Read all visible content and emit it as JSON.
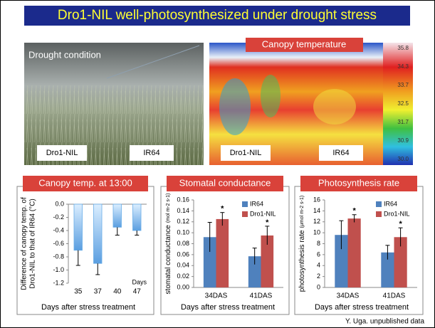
{
  "title": "Dro1-NIL well-photosynthesized under drought stress",
  "photos": [
    {
      "caption": "Drought condition",
      "labels": [
        "Dro1-NIL",
        "IR64"
      ]
    },
    {
      "caption": "Canopy temperature",
      "labels": [
        "Dro1-NIL",
        "IR64"
      ],
      "scale": [
        "35.8",
        "34.3",
        "33.7",
        "32.5",
        "31.7",
        "30.9",
        "30.0"
      ]
    }
  ],
  "chart_data": [
    {
      "type": "bar",
      "title": "Canopy temp. at 13:00",
      "ylabel": [
        "Difference of canopy temp. of",
        "Dro1-NIL to that of IR64 (°C)"
      ],
      "xlabel": "Days after stress treatment",
      "annotation": "Days",
      "categories": [
        "35",
        "37",
        "40",
        "47"
      ],
      "values": [
        -0.7,
        -0.9,
        -0.35,
        -0.4
      ],
      "errors": [
        0.23,
        0.17,
        0.12,
        0.07
      ],
      "color": "#6aaee8",
      "ylim": [
        -1.2,
        0
      ],
      "yticks": [
        {
          "value": 0,
          "label": "0.0"
        },
        -0.2,
        -0.4,
        -0.6,
        -0.8,
        {
          "value": -1,
          "label": "-1.0"
        },
        -1.2
      ]
    },
    {
      "type": "bar",
      "title": "Stomatal conductance",
      "ylabel": "stomatal conductance",
      "yunit": "(mol m-2 s-1)",
      "xlabel": "Days after stress treatment",
      "categories": [
        "34DAS",
        "41DAS"
      ],
      "series": [
        {
          "name": "IR64",
          "color": "#4f81bd",
          "values": [
            0.092,
            0.057
          ],
          "errors": [
            0.027,
            0.015
          ]
        },
        {
          "name": "Dro1-NIL",
          "color": "#c0504d",
          "values": [
            0.125,
            0.095
          ],
          "errors": [
            0.012,
            0.017
          ],
          "significance": [
            "*",
            "*"
          ]
        }
      ],
      "legend": "upper right",
      "ylim": [
        0,
        0.16
      ],
      "yticks": [
        {
          "value": 0,
          "label": "0.00"
        },
        {
          "value": 0.02,
          "label": "0.02"
        },
        {
          "value": 0.04,
          "label": "0.04"
        },
        {
          "value": 0.06,
          "label": "0.06"
        },
        {
          "value": 0.08,
          "label": "0.08"
        },
        {
          "value": 0.1,
          "label": "0.10"
        },
        {
          "value": 0.12,
          "label": "0.12"
        },
        {
          "value": 0.14,
          "label": "0.14"
        },
        {
          "value": 0.16,
          "label": "0.16"
        }
      ]
    },
    {
      "type": "bar",
      "title": "Photosynthesis rate",
      "ylabel": "photosynthesis rate",
      "yunit": "(μmol m-2 s-1)",
      "xlabel": "Days after stress treatment",
      "categories": [
        "34DAS",
        "41DAS"
      ],
      "series": [
        {
          "name": "IR64",
          "color": "#4f81bd",
          "values": [
            9.6,
            6.4
          ],
          "errors": [
            2.6,
            1.3
          ]
        },
        {
          "name": "Dro1-NIL",
          "color": "#c0504d",
          "values": [
            12.6,
            9.2
          ],
          "errors": [
            0.7,
            1.7
          ],
          "significance": [
            "*",
            "*"
          ]
        }
      ],
      "legend": "upper right",
      "ylim": [
        0,
        16
      ],
      "yticks": [
        0,
        2,
        4,
        6,
        8,
        10,
        12,
        14,
        16
      ]
    }
  ],
  "footnote": "Y. Uga. unpublished data"
}
